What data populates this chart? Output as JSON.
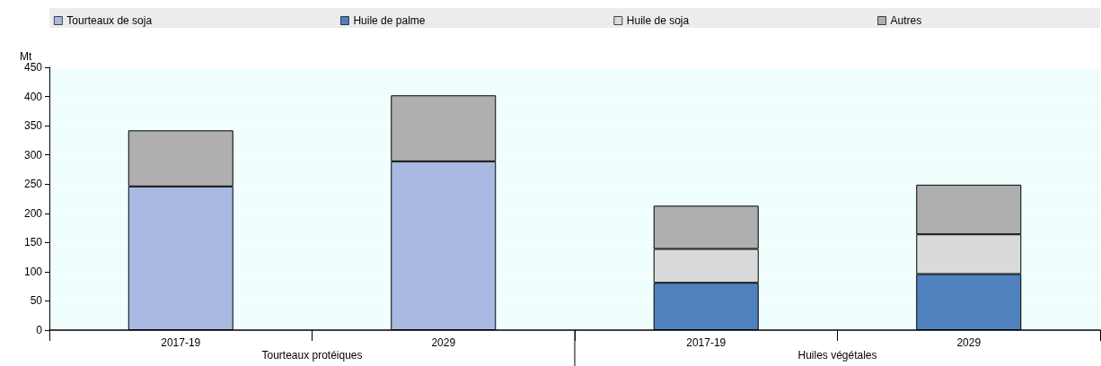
{
  "chart_data": {
    "type": "bar",
    "stacked": true,
    "ylabel": "Mt",
    "categories": [
      "2017-19",
      "2029",
      "2017-19",
      "2029"
    ],
    "series": [
      {
        "name": "Tourteaux de soja",
        "color": "#a9b9e2",
        "values": [
          246,
          289,
          null,
          null
        ]
      },
      {
        "name": "Huile de palme",
        "color": "#4f81bd",
        "values": [
          null,
          null,
          81,
          96
        ]
      },
      {
        "name": "Huile de soja",
        "color": "#dadada",
        "values": [
          null,
          null,
          58,
          68
        ]
      },
      {
        "name": "Autres",
        "color": "#afafaf",
        "values": [
          96,
          113,
          74,
          85
        ]
      }
    ],
    "annotations": [
      "Tourteaux protéiques",
      "Huiles végétales"
    ],
    "ylim": [
      0,
      450
    ],
    "yticks": [
      0,
      50,
      100,
      150,
      200,
      250,
      300,
      350,
      400,
      450
    ],
    "grid": "y",
    "legend": "top"
  }
}
